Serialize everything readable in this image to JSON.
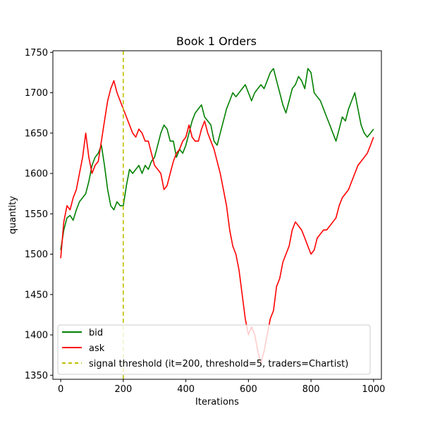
{
  "chart_data": {
    "type": "line",
    "title": "Book 1 Orders",
    "xlabel": "Iterations",
    "ylabel": "quantity",
    "xlim": [
      -25,
      1025
    ],
    "ylim": [
      1345,
      1752
    ],
    "xticks": [
      0,
      200,
      400,
      600,
      800,
      1000
    ],
    "yticks": [
      1350,
      1400,
      1450,
      1500,
      1550,
      1600,
      1650,
      1700,
      1750
    ],
    "grid": false,
    "legend_position": "lower-left",
    "series": [
      {
        "name": "bid",
        "color": "#008000",
        "x": [
          0,
          10,
          20,
          30,
          40,
          50,
          60,
          70,
          80,
          90,
          100,
          110,
          120,
          130,
          140,
          150,
          160,
          170,
          180,
          190,
          200,
          210,
          220,
          230,
          240,
          250,
          260,
          270,
          280,
          290,
          300,
          310,
          320,
          330,
          340,
          350,
          360,
          370,
          380,
          390,
          400,
          410,
          420,
          430,
          440,
          450,
          460,
          470,
          480,
          490,
          500,
          510,
          520,
          530,
          540,
          550,
          560,
          570,
          580,
          590,
          600,
          610,
          620,
          630,
          640,
          650,
          660,
          670,
          680,
          690,
          700,
          710,
          720,
          730,
          740,
          750,
          760,
          770,
          780,
          790,
          800,
          810,
          820,
          830,
          840,
          850,
          860,
          870,
          880,
          890,
          900,
          910,
          920,
          930,
          940,
          950,
          960,
          970,
          980,
          990,
          1000
        ],
        "y": [
          1505,
          1530,
          1545,
          1548,
          1542,
          1555,
          1565,
          1570,
          1575,
          1590,
          1610,
          1620,
          1625,
          1635,
          1610,
          1580,
          1560,
          1555,
          1565,
          1560,
          1560,
          1585,
          1605,
          1600,
          1605,
          1610,
          1600,
          1610,
          1605,
          1615,
          1620,
          1635,
          1650,
          1660,
          1655,
          1640,
          1640,
          1620,
          1630,
          1625,
          1635,
          1650,
          1665,
          1675,
          1680,
          1685,
          1670,
          1665,
          1660,
          1640,
          1635,
          1650,
          1665,
          1680,
          1690,
          1700,
          1695,
          1700,
          1705,
          1710,
          1700,
          1690,
          1700,
          1705,
          1710,
          1705,
          1715,
          1725,
          1730,
          1715,
          1700,
          1685,
          1675,
          1690,
          1705,
          1710,
          1720,
          1715,
          1705,
          1730,
          1725,
          1700,
          1695,
          1690,
          1680,
          1670,
          1660,
          1650,
          1640,
          1655,
          1670,
          1665,
          1680,
          1690,
          1700,
          1680,
          1660,
          1650,
          1645,
          1650,
          1655
        ]
      },
      {
        "name": "ask",
        "color": "#ff0000",
        "x": [
          0,
          10,
          20,
          30,
          40,
          50,
          60,
          70,
          80,
          90,
          100,
          110,
          120,
          130,
          140,
          150,
          160,
          170,
          180,
          190,
          200,
          210,
          220,
          230,
          240,
          250,
          260,
          270,
          280,
          290,
          300,
          310,
          320,
          330,
          340,
          350,
          360,
          370,
          380,
          390,
          400,
          410,
          420,
          430,
          440,
          450,
          460,
          470,
          480,
          490,
          500,
          510,
          520,
          530,
          540,
          550,
          560,
          570,
          580,
          590,
          600,
          610,
          620,
          630,
          640,
          650,
          660,
          670,
          680,
          690,
          700,
          710,
          720,
          730,
          740,
          750,
          760,
          770,
          780,
          790,
          800,
          810,
          820,
          830,
          840,
          850,
          860,
          870,
          880,
          890,
          900,
          910,
          920,
          930,
          940,
          950,
          960,
          970,
          980,
          990,
          1000
        ],
        "y": [
          1495,
          1540,
          1560,
          1555,
          1570,
          1580,
          1600,
          1620,
          1650,
          1620,
          1600,
          1610,
          1615,
          1640,
          1665,
          1690,
          1705,
          1715,
          1700,
          1690,
          1680,
          1670,
          1660,
          1650,
          1645,
          1655,
          1650,
          1640,
          1640,
          1625,
          1610,
          1605,
          1600,
          1580,
          1585,
          1600,
          1615,
          1625,
          1630,
          1640,
          1645,
          1660,
          1645,
          1640,
          1640,
          1655,
          1665,
          1650,
          1640,
          1630,
          1615,
          1600,
          1580,
          1560,
          1530,
          1510,
          1500,
          1480,
          1450,
          1420,
          1400,
          1410,
          1400,
          1380,
          1365,
          1380,
          1400,
          1420,
          1430,
          1460,
          1470,
          1490,
          1500,
          1510,
          1530,
          1540,
          1535,
          1530,
          1520,
          1510,
          1500,
          1505,
          1520,
          1525,
          1530,
          1530,
          1535,
          1540,
          1545,
          1560,
          1570,
          1575,
          1580,
          1590,
          1600,
          1610,
          1615,
          1620,
          1625,
          1635,
          1645
        ]
      }
    ],
    "vline": {
      "label": "signal threshold (it=200, threshold=5, traders=Chartist)",
      "x": 200,
      "color": "#bfbf00",
      "style": "dashed"
    }
  }
}
